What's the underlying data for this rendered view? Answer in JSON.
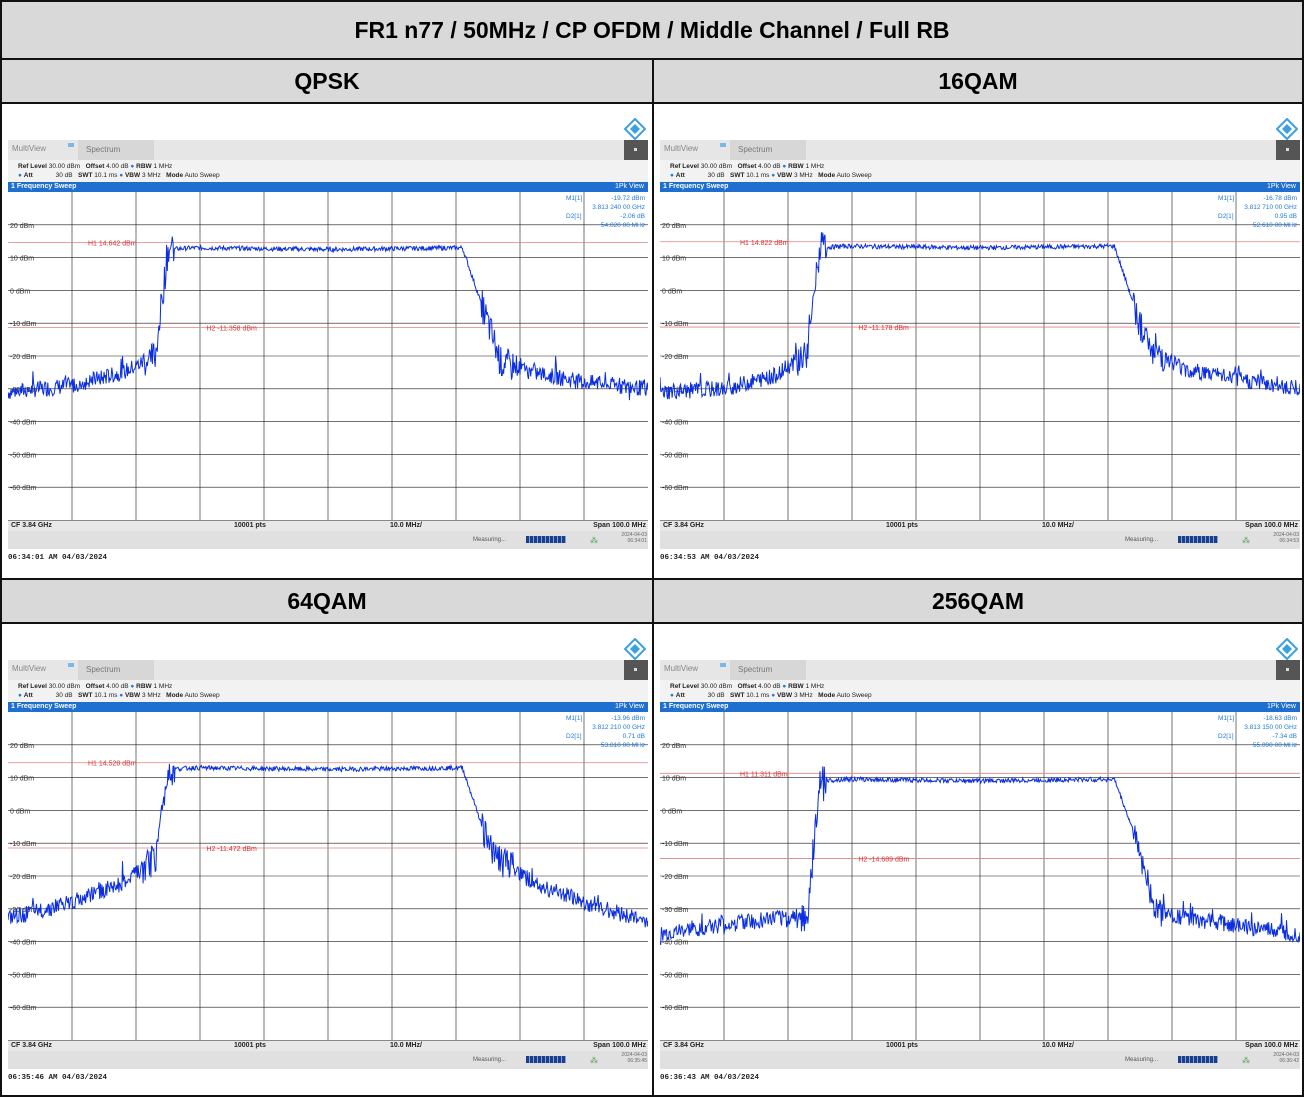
{
  "report_title": "FR1 n77 / 50MHz / CP OFDM / Middle Channel / Full RB",
  "panels": [
    {
      "modulation": "QPSK",
      "toolbar": {
        "multiview": "MultiView",
        "spectrum_tab": "Spectrum"
      },
      "settings": {
        "ref_level_label": "Ref Level",
        "ref_level": "30.00 dBm",
        "offset_label": "Offset",
        "offset": "4.00 dB",
        "rbw_label": "RBW",
        "rbw": "1 MHz",
        "att_label": "Att",
        "att": "30 dB",
        "swt_label": "SWT",
        "swt": "10.1 ms",
        "vbw_label": "VBW",
        "vbw": "3 MHz",
        "mode_label": "Mode",
        "mode": "Auto Sweep"
      },
      "frame_title": "1 Frequency Sweep",
      "view_mode": "1Pk View",
      "markers": {
        "m1_label": "M1[1]",
        "m1_level": "-19.72 dBm",
        "m1_freq": "3.813 240 00 GHz",
        "d2_label": "D2[1]",
        "d2_level": "-2.06 dB",
        "d2_freq": "54.020 00 MHz"
      },
      "h1": "H1 14.642 dBm",
      "h2": "H2 -11.358 dBm",
      "h1_level_dbm": 14.642,
      "h2_level_dbm": -11.358,
      "footer": {
        "cf": "CF 3.84 GHz",
        "pts": "10001 pts",
        "div": "10.0 MHz/",
        "span": "Span 100.0 MHz"
      },
      "status": {
        "measuring": "Measuring...",
        "date": "2024-04-03",
        "time": "06:34:01"
      },
      "timestamp": "06:34:01 AM  04/03/2024"
    },
    {
      "modulation": "16QAM",
      "toolbar": {
        "multiview": "MultiView",
        "spectrum_tab": "Spectrum"
      },
      "settings": {
        "ref_level_label": "Ref Level",
        "ref_level": "30.00 dBm",
        "offset_label": "Offset",
        "offset": "4.00 dB",
        "rbw_label": "RBW",
        "rbw": "1 MHz",
        "att_label": "Att",
        "att": "30 dB",
        "swt_label": "SWT",
        "swt": "10.1 ms",
        "vbw_label": "VBW",
        "vbw": "3 MHz",
        "mode_label": "Mode",
        "mode": "Auto Sweep"
      },
      "frame_title": "1 Frequency Sweep",
      "view_mode": "1Pk View",
      "markers": {
        "m1_label": "M1[1]",
        "m1_level": "-16.78 dBm",
        "m1_freq": "3.812 710 00 GHz",
        "d2_label": "D2[1]",
        "d2_level": "0.95 dB",
        "d2_freq": "52.610 00 MHz"
      },
      "h1": "H1 14.822 dBm",
      "h2": "H2 -11.178 dBm",
      "h1_level_dbm": 14.822,
      "h2_level_dbm": -11.178,
      "footer": {
        "cf": "CF 3.84 GHz",
        "pts": "10001 pts",
        "div": "10.0 MHz/",
        "span": "Span 100.0 MHz"
      },
      "status": {
        "measuring": "Measuring...",
        "date": "2024-04-03",
        "time": "06:34:53"
      },
      "timestamp": "06:34:53 AM  04/03/2024"
    },
    {
      "modulation": "64QAM",
      "toolbar": {
        "multiview": "MultiView",
        "spectrum_tab": "Spectrum"
      },
      "settings": {
        "ref_level_label": "Ref Level",
        "ref_level": "30.00 dBm",
        "offset_label": "Offset",
        "offset": "4.00 dB",
        "rbw_label": "RBW",
        "rbw": "1 MHz",
        "att_label": "Att",
        "att": "30 dB",
        "swt_label": "SWT",
        "swt": "10.1 ms",
        "vbw_label": "VBW",
        "vbw": "3 MHz",
        "mode_label": "Mode",
        "mode": "Auto Sweep"
      },
      "frame_title": "1 Frequency Sweep",
      "view_mode": "1Pk View",
      "markers": {
        "m1_label": "M1[1]",
        "m1_level": "-13.96 dBm",
        "m1_freq": "3.812 210 00 GHz",
        "d2_label": "D2[1]",
        "d2_level": "0.71 dB",
        "d2_freq": "53.810 00 MHz"
      },
      "h1": "H1 14.528 dBm",
      "h2": "H2 -11.472 dBm",
      "h1_level_dbm": 14.528,
      "h2_level_dbm": -11.472,
      "footer": {
        "cf": "CF 3.84 GHz",
        "pts": "10001 pts",
        "div": "10.0 MHz/",
        "span": "Span 100.0 MHz"
      },
      "status": {
        "measuring": "Measuring...",
        "date": "2024-04-03",
        "time": "06:35:45"
      },
      "timestamp": "06:35:46 AM  04/03/2024"
    },
    {
      "modulation": "256QAM",
      "toolbar": {
        "multiview": "MultiView",
        "spectrum_tab": "Spectrum"
      },
      "settings": {
        "ref_level_label": "Ref Level",
        "ref_level": "30.00 dBm",
        "offset_label": "Offset",
        "offset": "4.00 dB",
        "rbw_label": "RBW",
        "rbw": "1 MHz",
        "att_label": "Att",
        "att": "30 dB",
        "swt_label": "SWT",
        "swt": "10.1 ms",
        "vbw_label": "VBW",
        "vbw": "3 MHz",
        "mode_label": "Mode",
        "mode": "Auto Sweep"
      },
      "frame_title": "1 Frequency Sweep",
      "view_mode": "1Pk View",
      "markers": {
        "m1_label": "M1[1]",
        "m1_level": "-18.63 dBm",
        "m1_freq": "3.813 150 00 GHz",
        "d2_label": "D2[1]",
        "d2_level": "-7.34 dB",
        "d2_freq": "55.090 00 MHz"
      },
      "h1": "H1 11.311 dBm",
      "h2": "H2 -14.689 dBm",
      "h1_level_dbm": 11.311,
      "h2_level_dbm": -14.689,
      "footer": {
        "cf": "CF 3.84 GHz",
        "pts": "10001 pts",
        "div": "10.0 MHz/",
        "span": "Span 100.0 MHz"
      },
      "status": {
        "measuring": "Measuring...",
        "date": "2024-04-03",
        "time": "06:36:42"
      },
      "timestamp": "06:36:43 AM  04/03/2024"
    }
  ],
  "y_axis_labels": [
    "20 dBm",
    "10 dBm",
    "0 dBm",
    "-10 dBm",
    "-20 dBm",
    "-30 dBm",
    "-40 dBm",
    "-50 dBm",
    "-60 dBm"
  ],
  "chart_data": [
    {
      "type": "line",
      "title": "QPSK",
      "x_range_mhz": [
        -50,
        50
      ],
      "ylim": [
        -70,
        30
      ],
      "x": [
        -50,
        -40,
        -32,
        -27,
        -25,
        -21,
        0,
        21,
        25,
        27,
        32,
        40,
        50
      ],
      "y": [
        -31,
        -29,
        -25,
        -20,
        12.5,
        13,
        12.5,
        13,
        -10,
        -22,
        -25,
        -28,
        -30
      ]
    },
    {
      "type": "line",
      "title": "16QAM",
      "x_range_mhz": [
        -50,
        50
      ],
      "ylim": [
        -70,
        30
      ],
      "x": [
        -50,
        -40,
        -32,
        -27,
        -25,
        -21,
        0,
        21,
        25,
        27,
        32,
        40,
        50
      ],
      "y": [
        -31,
        -30,
        -26,
        -19,
        13,
        13.5,
        13,
        13.5,
        -10,
        -18,
        -24,
        -27,
        -30
      ]
    },
    {
      "type": "line",
      "title": "64QAM",
      "x_range_mhz": [
        -50,
        50
      ],
      "ylim": [
        -70,
        30
      ],
      "x": [
        -50,
        -40,
        -32,
        -27,
        -25,
        -21,
        0,
        21,
        25,
        27,
        32,
        40,
        50
      ],
      "y": [
        -33,
        -28,
        -22,
        -15,
        12.5,
        13,
        12.5,
        13,
        -10,
        -15,
        -22,
        -28,
        -34
      ]
    },
    {
      "type": "line",
      "title": "256QAM",
      "x_range_mhz": [
        -50,
        50
      ],
      "ylim": [
        -70,
        30
      ],
      "x": [
        -50,
        -40,
        -32,
        -27,
        -25,
        -21,
        0,
        21,
        25,
        27,
        32,
        40,
        50
      ],
      "y": [
        -38,
        -35,
        -33,
        -32,
        9,
        9.5,
        9,
        9.5,
        -12,
        -30,
        -33,
        -35,
        -38
      ]
    }
  ]
}
